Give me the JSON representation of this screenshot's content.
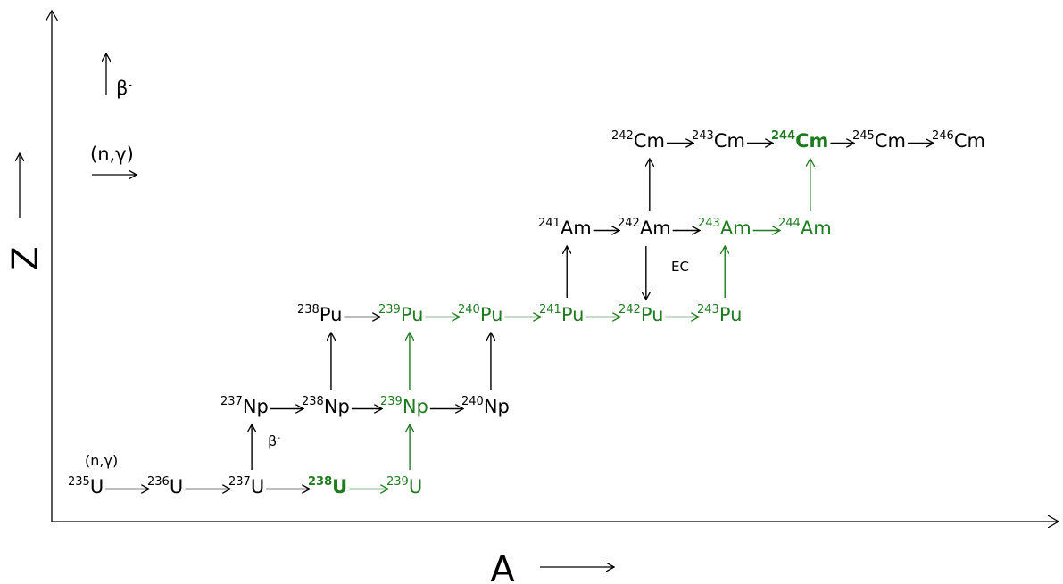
{
  "colors": {
    "black": "#000000",
    "green": "#1e7b1e"
  },
  "axes": {
    "x_label": "A",
    "y_label": "Z"
  },
  "legend": {
    "beta_label": "β",
    "beta_sup": "-",
    "capture_label": "(n,γ)"
  },
  "annotations": {
    "capture_label": "(n,γ)",
    "beta_label": "β",
    "beta_sup": "-",
    "ec_label": "EC"
  },
  "nuclides": [
    {
      "id": "u235",
      "mass": "235",
      "symbol": "U",
      "color": "black",
      "bold": false
    },
    {
      "id": "u236",
      "mass": "236",
      "symbol": "U",
      "color": "black",
      "bold": false
    },
    {
      "id": "u237",
      "mass": "237",
      "symbol": "U",
      "color": "black",
      "bold": false
    },
    {
      "id": "u238",
      "mass": "238",
      "symbol": "U",
      "color": "green",
      "bold": true
    },
    {
      "id": "u239",
      "mass": "239",
      "symbol": "U",
      "color": "green",
      "bold": false
    },
    {
      "id": "np237",
      "mass": "237",
      "symbol": "Np",
      "color": "black",
      "bold": false
    },
    {
      "id": "np238",
      "mass": "238",
      "symbol": "Np",
      "color": "black",
      "bold": false
    },
    {
      "id": "np239",
      "mass": "239",
      "symbol": "Np",
      "color": "green",
      "bold": false
    },
    {
      "id": "np240",
      "mass": "240",
      "symbol": "Np",
      "color": "black",
      "bold": false
    },
    {
      "id": "pu238",
      "mass": "238",
      "symbol": "Pu",
      "color": "black",
      "bold": false
    },
    {
      "id": "pu239",
      "mass": "239",
      "symbol": "Pu",
      "color": "green",
      "bold": false
    },
    {
      "id": "pu240",
      "mass": "240",
      "symbol": "Pu",
      "color": "green",
      "bold": false
    },
    {
      "id": "pu241",
      "mass": "241",
      "symbol": "Pu",
      "color": "green",
      "bold": false
    },
    {
      "id": "pu242",
      "mass": "242",
      "symbol": "Pu",
      "color": "green",
      "bold": false
    },
    {
      "id": "pu243",
      "mass": "243",
      "symbol": "Pu",
      "color": "green",
      "bold": false
    },
    {
      "id": "am241",
      "mass": "241",
      "symbol": "Am",
      "color": "black",
      "bold": false
    },
    {
      "id": "am242",
      "mass": "242",
      "symbol": "Am",
      "color": "black",
      "bold": false
    },
    {
      "id": "am243",
      "mass": "243",
      "symbol": "Am",
      "color": "green",
      "bold": false
    },
    {
      "id": "am244",
      "mass": "244",
      "symbol": "Am",
      "color": "green",
      "bold": false
    },
    {
      "id": "cm242",
      "mass": "242",
      "symbol": "Cm",
      "color": "black",
      "bold": false
    },
    {
      "id": "cm243",
      "mass": "243",
      "symbol": "Cm",
      "color": "black",
      "bold": false
    },
    {
      "id": "cm244",
      "mass": "244",
      "symbol": "Cm",
      "color": "green",
      "bold": true
    },
    {
      "id": "cm245",
      "mass": "245",
      "symbol": "Cm",
      "color": "black",
      "bold": false
    },
    {
      "id": "cm246",
      "mass": "246",
      "symbol": "Cm",
      "color": "black",
      "bold": false
    }
  ],
  "transitions": [
    {
      "from": "u235",
      "to": "u236",
      "kind": "capture",
      "color": "black"
    },
    {
      "from": "u236",
      "to": "u237",
      "kind": "capture",
      "color": "black"
    },
    {
      "from": "u237",
      "to": "u238",
      "kind": "capture",
      "color": "black"
    },
    {
      "from": "u238",
      "to": "u239",
      "kind": "capture",
      "color": "green"
    },
    {
      "from": "np237",
      "to": "np238",
      "kind": "capture",
      "color": "black"
    },
    {
      "from": "np238",
      "to": "np239",
      "kind": "capture",
      "color": "black"
    },
    {
      "from": "np239",
      "to": "np240",
      "kind": "capture",
      "color": "black"
    },
    {
      "from": "pu238",
      "to": "pu239",
      "kind": "capture",
      "color": "black"
    },
    {
      "from": "pu239",
      "to": "pu240",
      "kind": "capture",
      "color": "green"
    },
    {
      "from": "pu240",
      "to": "pu241",
      "kind": "capture",
      "color": "green"
    },
    {
      "from": "pu241",
      "to": "pu242",
      "kind": "capture",
      "color": "green"
    },
    {
      "from": "pu242",
      "to": "pu243",
      "kind": "capture",
      "color": "green"
    },
    {
      "from": "am241",
      "to": "am242",
      "kind": "capture",
      "color": "black"
    },
    {
      "from": "am242",
      "to": "am243",
      "kind": "capture",
      "color": "black"
    },
    {
      "from": "am243",
      "to": "am244",
      "kind": "capture",
      "color": "green"
    },
    {
      "from": "cm242",
      "to": "cm243",
      "kind": "capture",
      "color": "black"
    },
    {
      "from": "cm243",
      "to": "cm244",
      "kind": "capture",
      "color": "black"
    },
    {
      "from": "cm244",
      "to": "cm245",
      "kind": "capture",
      "color": "black"
    },
    {
      "from": "cm245",
      "to": "cm246",
      "kind": "capture",
      "color": "black"
    },
    {
      "from": "u237",
      "to": "np237",
      "kind": "beta",
      "color": "black"
    },
    {
      "from": "u239",
      "to": "np239",
      "kind": "beta",
      "color": "green"
    },
    {
      "from": "np238",
      "to": "pu238",
      "kind": "beta",
      "color": "black"
    },
    {
      "from": "np239",
      "to": "pu239",
      "kind": "beta",
      "color": "green"
    },
    {
      "from": "np240",
      "to": "pu240",
      "kind": "beta",
      "color": "black"
    },
    {
      "from": "pu241",
      "to": "am241",
      "kind": "beta",
      "color": "black"
    },
    {
      "from": "pu243",
      "to": "am243",
      "kind": "beta",
      "color": "green"
    },
    {
      "from": "am242",
      "to": "cm242",
      "kind": "beta",
      "color": "black"
    },
    {
      "from": "am244",
      "to": "cm244",
      "kind": "beta",
      "color": "green"
    },
    {
      "from": "am242",
      "to": "pu242",
      "kind": "ec",
      "color": "black"
    }
  ]
}
